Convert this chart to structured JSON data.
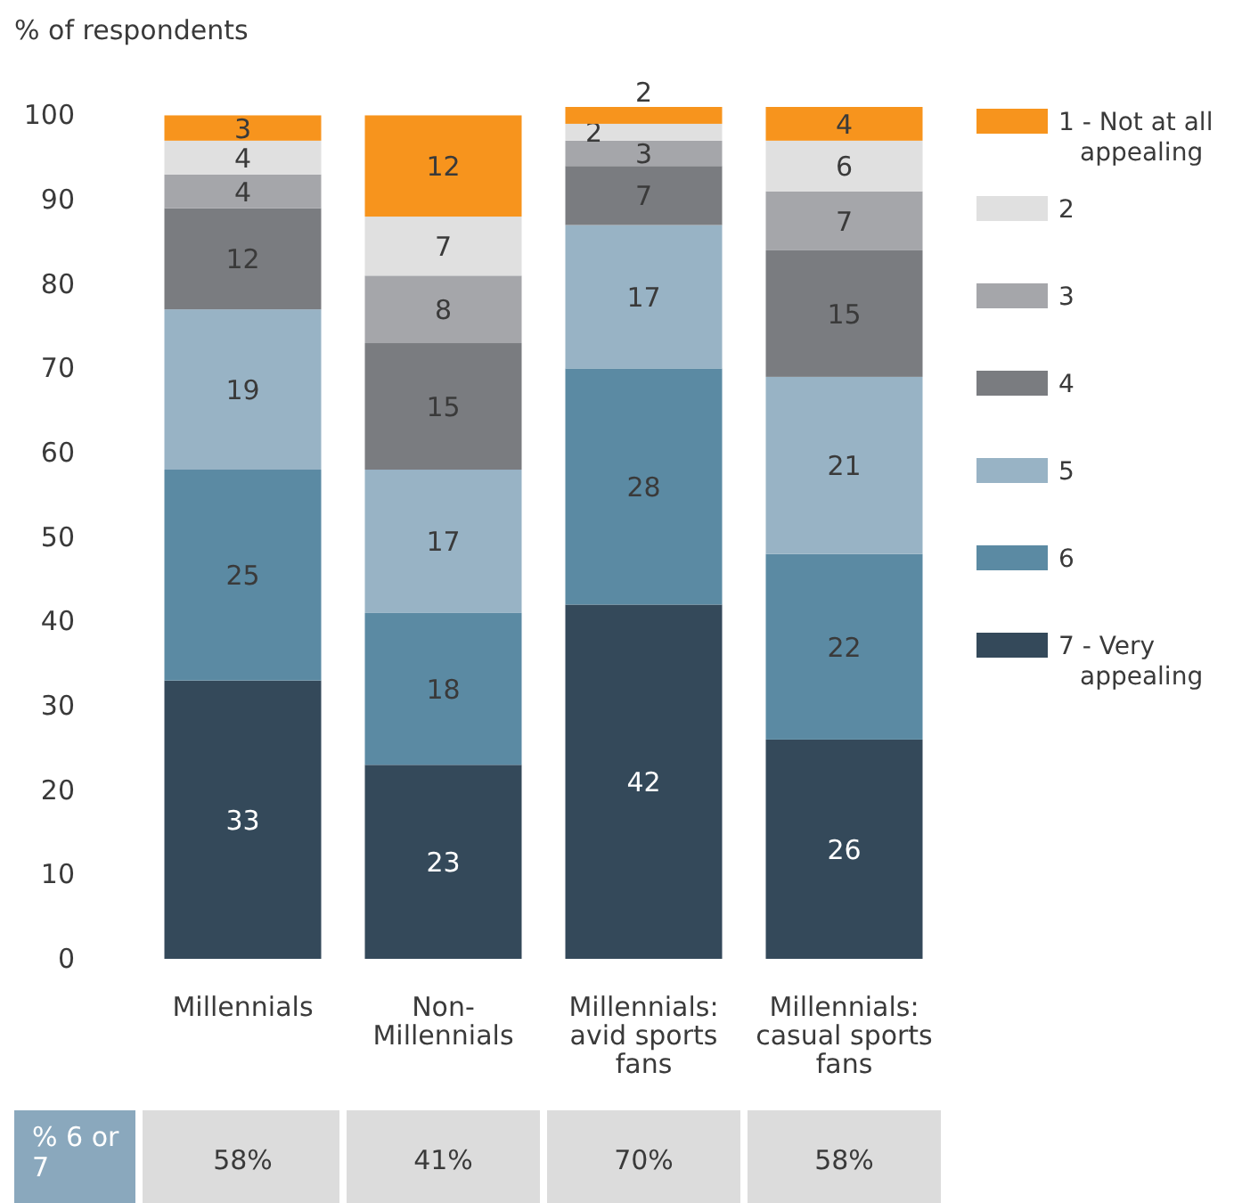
{
  "chart_data": {
    "type": "bar",
    "stacked": true,
    "ylabel": "% of respondents",
    "categories": [
      "Millennials",
      "Non-Millennials",
      "Millennials: avid sports fans",
      "Millennials: casual sports fans"
    ],
    "series": [
      {
        "name": "7 - Very appealing",
        "color": "#34495a",
        "values": [
          33,
          23,
          42,
          26
        ]
      },
      {
        "name": "6",
        "color": "#5b8aa3",
        "values": [
          25,
          18,
          28,
          22
        ]
      },
      {
        "name": "5",
        "color": "#98b3c5",
        "values": [
          19,
          17,
          17,
          21
        ]
      },
      {
        "name": "4",
        "color": "#7a7c80",
        "values": [
          12,
          15,
          7,
          15
        ]
      },
      {
        "name": "3",
        "color": "#a5a6aa",
        "values": [
          4,
          8,
          3,
          7
        ]
      },
      {
        "name": "2",
        "color": "#e0e0e0",
        "values": [
          4,
          7,
          2,
          6
        ]
      },
      {
        "name": "1 - Not at all appealing",
        "color": "#f7941d",
        "values": [
          3,
          12,
          2,
          4
        ]
      }
    ],
    "ylim": [
      0,
      101
    ],
    "yticks": [
      0,
      10,
      20,
      30,
      40,
      50,
      60,
      70,
      80,
      90,
      100
    ],
    "data_labels": true,
    "legend": "right",
    "annotations": [
      "% 6 or 7",
      "58%",
      "41%",
      "70%",
      "58%"
    ]
  }
}
